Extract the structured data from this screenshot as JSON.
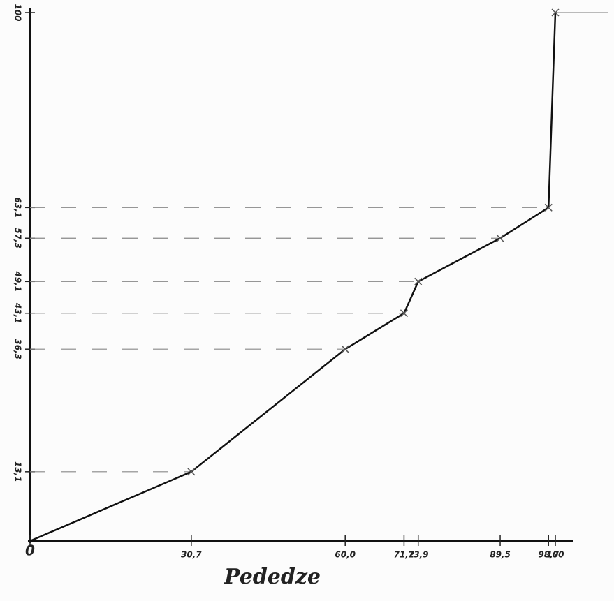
{
  "chart_data": {
    "type": "line",
    "x_label": "Pededze",
    "x": [
      0,
      30.7,
      60.0,
      71.2,
      73.9,
      89.5,
      98.7,
      100
    ],
    "values": [
      0,
      13.1,
      36.3,
      43.1,
      49.1,
      57.3,
      63.1,
      100
    ],
    "color": "#111",
    "xlim": [
      0,
      100
    ],
    "ylim": [
      0,
      100
    ],
    "xticks": [
      0,
      {
        "value": 30.7,
        "label": "30,7"
      },
      {
        "value": 60.0,
        "label": "60,0"
      },
      {
        "value": 71.2,
        "label": "71,2"
      },
      {
        "value": 73.9,
        "label": "73,9"
      },
      {
        "value": 89.5,
        "label": "89,5"
      },
      {
        "value": 98.7,
        "label": "98,7"
      },
      100
    ],
    "yticks": [
      {
        "value": 13.1,
        "label": "13,1"
      },
      {
        "value": 36.3,
        "label": "36,3"
      },
      {
        "value": 43.1,
        "label": "43,1"
      },
      {
        "value": 49.1,
        "label": "49,1"
      },
      {
        "value": 57.3,
        "label": "57,3"
      },
      {
        "value": 63.1,
        "label": "63,1"
      },
      100
    ]
  }
}
